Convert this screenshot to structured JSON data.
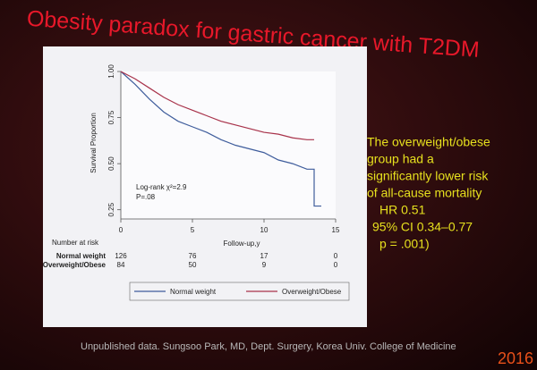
{
  "slide": {
    "title": "Obesity paradox for gastric cancer with T2DM",
    "side_text": [
      "The overweight/obese",
      "group had a",
      "significantly lower risk",
      "of all-cause mortality",
      "HR 0.51",
      "95% CI 0.34–0.77",
      "p = .001)"
    ],
    "footer": "Unpublished data. Sungsoo Park, MD, Dept. Surgery, Korea Univ. College of Medicine",
    "year": "2016"
  },
  "chart_data": {
    "type": "line",
    "y_label": "Survival Proportion",
    "x_label": "Follow-up,y",
    "annotations": [
      "Log-rank χ²=2.9",
      "P=.08"
    ],
    "xlim": [
      0,
      15
    ],
    "xticks": [
      0,
      5,
      10,
      15
    ],
    "ylim": [
      0.2,
      1.0
    ],
    "yticks": [
      {
        "value": 0.25,
        "label": "0.25"
      },
      {
        "value": 0.5,
        "label": "0.50"
      },
      {
        "value": 0.75,
        "label": "0.75"
      },
      {
        "value": 1,
        "label": "1.00"
      }
    ],
    "series": [
      {
        "name": "Normal weight",
        "color": "#3f5d9c",
        "x": [
          0,
          1,
          2,
          3,
          4,
          5,
          6,
          7,
          8,
          9,
          10,
          11,
          12,
          13,
          13.5,
          13.5,
          14
        ],
        "values": [
          1.0,
          0.93,
          0.85,
          0.78,
          0.73,
          0.7,
          0.67,
          0.63,
          0.6,
          0.58,
          0.56,
          0.52,
          0.5,
          0.47,
          0.47,
          0.27,
          0.27
        ]
      },
      {
        "name": "Overweight/Obese",
        "color": "#a8324a",
        "x": [
          0,
          1,
          2,
          3,
          4,
          5,
          6,
          7,
          8,
          9,
          10,
          11,
          12,
          13,
          13.5
        ],
        "values": [
          1.0,
          0.96,
          0.91,
          0.86,
          0.82,
          0.79,
          0.76,
          0.73,
          0.71,
          0.69,
          0.67,
          0.66,
          0.64,
          0.63,
          0.63
        ]
      }
    ],
    "risk_table": {
      "title": "Number at risk",
      "rows": [
        {
          "label": "Normal weight",
          "values": [
            126,
            76,
            17,
            0
          ]
        },
        {
          "label": "Overweight/Obese",
          "values": [
            84,
            50,
            9,
            0
          ]
        }
      ]
    }
  }
}
